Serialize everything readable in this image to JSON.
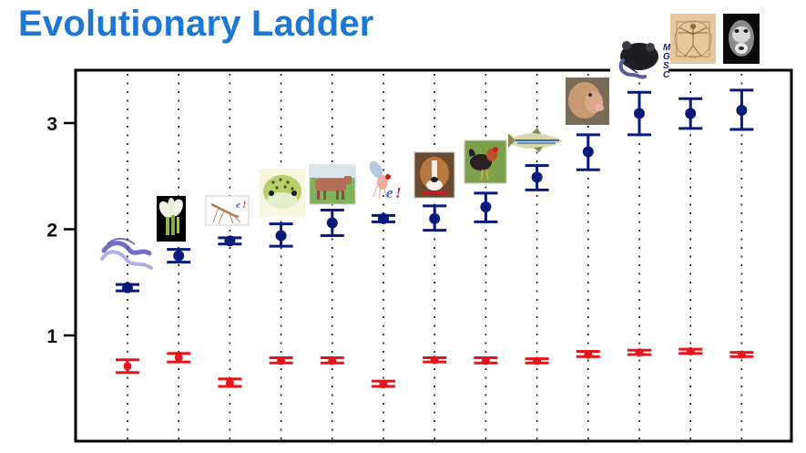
{
  "title": "Evolutionary Ladder",
  "colors": {
    "title": "#1f77d4",
    "blue_series": "#0a1a7a",
    "red_series": "#e8141b",
    "frame": "#000000"
  },
  "chart_data": {
    "type": "errorbar",
    "title": "Evolutionary Ladder",
    "xlabel": "",
    "ylabel": "",
    "ylim": [
      0.28,
      3.5
    ],
    "yticks": [
      1,
      2,
      3
    ],
    "ytick_labels": [
      "1",
      "2",
      "3"
    ],
    "grid": "vertical dotted lines at each category",
    "legend": "none (organism pictures used as category markers)",
    "categories": [
      "worm",
      "plant (arabidopsis)",
      "mosquito",
      "pufferfish",
      "cow",
      "fruit fly",
      "dog",
      "chicken",
      "zebrafish",
      "macaque",
      "mouse",
      "human",
      "chimpanzee"
    ],
    "category_icons": [
      "worm-icon",
      "flower-icon",
      "mosquito-icon",
      "pufferfish-icon",
      "cow-icon",
      "fruit-fly-icon",
      "dog-icon",
      "chicken-icon",
      "zebrafish-icon",
      "macaque-icon",
      "mouse-icon",
      "human-icon",
      "chimpanzee-icon"
    ],
    "series": [
      {
        "name": "blue",
        "color": "#0a1a7a",
        "values": [
          1.45,
          1.75,
          1.89,
          1.94,
          2.06,
          2.1,
          2.1,
          2.21,
          2.49,
          2.73,
          3.09,
          3.09,
          3.12
        ],
        "err_low": [
          1.42,
          1.69,
          1.86,
          1.84,
          1.94,
          2.07,
          1.99,
          2.07,
          2.37,
          2.56,
          2.89,
          2.95,
          2.94
        ],
        "err_high": [
          1.48,
          1.81,
          1.92,
          2.05,
          2.18,
          2.13,
          2.22,
          2.34,
          2.6,
          2.89,
          3.29,
          3.23,
          3.31
        ]
      },
      {
        "name": "red",
        "color": "#e8141b",
        "values": [
          0.71,
          0.79,
          0.55,
          0.76,
          0.76,
          0.54,
          0.77,
          0.76,
          0.76,
          0.82,
          0.84,
          0.85,
          0.82
        ],
        "err_low": [
          0.65,
          0.75,
          0.52,
          0.74,
          0.74,
          0.52,
          0.75,
          0.74,
          0.74,
          0.8,
          0.82,
          0.83,
          0.8
        ],
        "err_high": [
          0.77,
          0.83,
          0.59,
          0.79,
          0.79,
          0.57,
          0.79,
          0.79,
          0.78,
          0.85,
          0.86,
          0.87,
          0.84
        ]
      }
    ],
    "annotations": [
      "MGSC",
      "e!",
      "e!"
    ]
  },
  "labels": {
    "mgsc": [
      "M",
      "G",
      "S",
      "C"
    ],
    "ensembl": "e!"
  }
}
